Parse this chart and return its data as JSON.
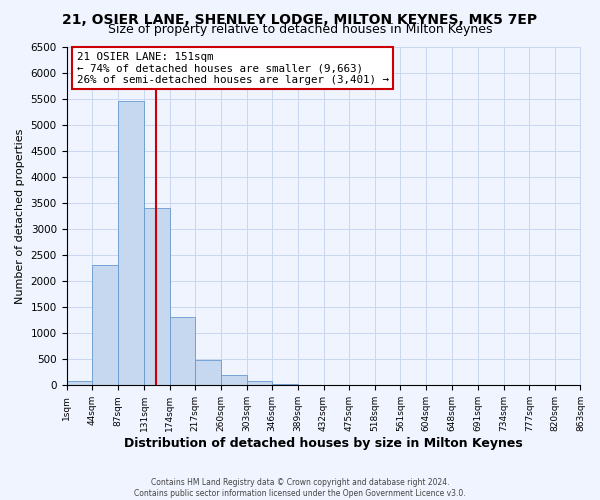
{
  "title1": "21, OSIER LANE, SHENLEY LODGE, MILTON KEYNES, MK5 7EP",
  "title2": "Size of property relative to detached houses in Milton Keynes",
  "xlabel": "Distribution of detached houses by size in Milton Keynes",
  "ylabel": "Number of detached properties",
  "bar_edges": [
    1,
    44,
    87,
    131,
    174,
    217,
    260,
    303,
    346,
    389,
    432,
    475,
    518,
    561,
    604,
    648,
    691,
    734,
    777,
    820,
    863
  ],
  "bar_heights": [
    75,
    2300,
    5450,
    3400,
    1310,
    490,
    190,
    90,
    30,
    10,
    5,
    5,
    0,
    0,
    0,
    0,
    0,
    0,
    0,
    0
  ],
  "bar_color": "#c5d8f0",
  "bar_edgecolor": "#6699cc",
  "vline_x": 151,
  "vline_color": "#cc0000",
  "annotation_title": "21 OSIER LANE: 151sqm",
  "annotation_line1": "← 74% of detached houses are smaller (9,663)",
  "annotation_line2": "26% of semi-detached houses are larger (3,401) →",
  "annotation_box_edgecolor": "#cc0000",
  "ylim": [
    0,
    6500
  ],
  "yticks": [
    0,
    500,
    1000,
    1500,
    2000,
    2500,
    3000,
    3500,
    4000,
    4500,
    5000,
    5500,
    6000,
    6500
  ],
  "xtick_labels": [
    "1sqm",
    "44sqm",
    "87sqm",
    "131sqm",
    "174sqm",
    "217sqm",
    "260sqm",
    "303sqm",
    "346sqm",
    "389sqm",
    "432sqm",
    "475sqm",
    "518sqm",
    "561sqm",
    "604sqm",
    "648sqm",
    "691sqm",
    "734sqm",
    "777sqm",
    "820sqm",
    "863sqm"
  ],
  "footer1": "Contains HM Land Registry data © Crown copyright and database right 2024.",
  "footer2": "Contains public sector information licensed under the Open Government Licence v3.0.",
  "bg_color": "#f0f4ff",
  "grid_color": "#c8d8f0",
  "title1_fontsize": 10,
  "title2_fontsize": 9
}
